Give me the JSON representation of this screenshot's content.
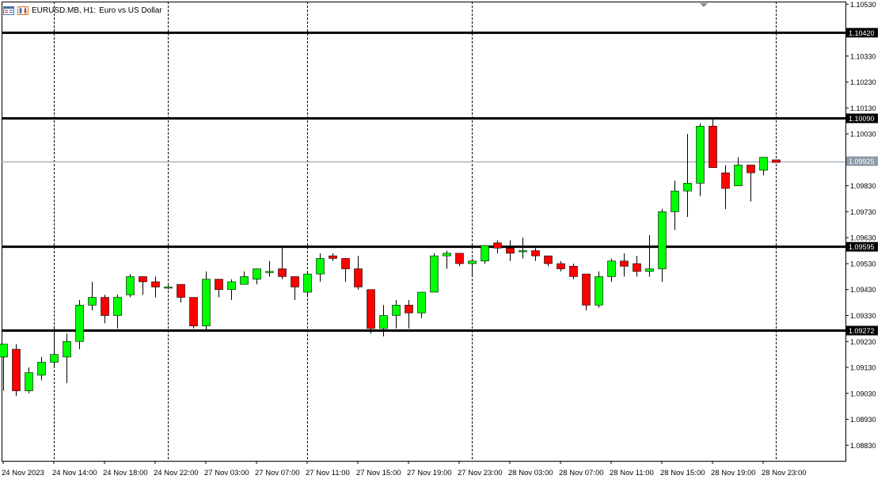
{
  "header": {
    "symbol": "EURUSD.MB, H1:",
    "description": "Euro vs US Dollar",
    "icons": [
      "chart-window-icon",
      "candle-chart-icon"
    ]
  },
  "colors": {
    "bull": "#00ff00",
    "bear": "#ff0000",
    "wick": "#000000",
    "level_line": "#000000",
    "bid_line": "#8c9aa8",
    "grid": "#000000",
    "axis_text": "#000000"
  },
  "chart_data": {
    "type": "candlestick",
    "timeframe": "H1",
    "y_axis": {
      "ylim": [
        1.0877,
        1.1054
      ],
      "ticks": [
        "1.10530",
        "1.10330",
        "1.10230",
        "1.10130",
        "1.10030",
        "1.09830",
        "1.09730",
        "1.09630",
        "1.09530",
        "1.09430",
        "1.09330",
        "1.09230",
        "1.09130",
        "1.09030",
        "1.08930",
        "1.08830"
      ]
    },
    "x_axis": {
      "ticks": [
        "24 Nov 2023",
        "24 Nov 14:00",
        "24 Nov 18:00",
        "24 Nov 22:00",
        "27 Nov 03:00",
        "27 Nov 07:00",
        "27 Nov 11:00",
        "27 Nov 15:00",
        "27 Nov 19:00",
        "27 Nov 23:00",
        "28 Nov 03:00",
        "28 Nov 07:00",
        "28 Nov 11:00",
        "28 Nov 15:00",
        "28 Nov 19:00",
        "28 Nov 23:00"
      ]
    },
    "horizontal_levels": [
      {
        "price": 1.1042,
        "label": "1.10420"
      },
      {
        "price": 1.1009,
        "label": "1.10090"
      },
      {
        "price": 1.09595,
        "label": "1.09595"
      },
      {
        "price": 1.09272,
        "label": "1.09272"
      }
    ],
    "bid": {
      "price": 1.09925,
      "label": "1.09925"
    },
    "period_separators": [
      4,
      13,
      24,
      37,
      61
    ],
    "candles": [
      {
        "o": 1.0917,
        "h": 1.0922,
        "l": 1.0904,
        "c": 1.0922
      },
      {
        "o": 1.092,
        "h": 1.0922,
        "l": 1.0902,
        "c": 1.0904
      },
      {
        "o": 1.0904,
        "h": 1.0913,
        "l": 1.0903,
        "c": 1.0911
      },
      {
        "o": 1.091,
        "h": 1.0917,
        "l": 1.0908,
        "c": 1.0915
      },
      {
        "o": 1.0915,
        "h": 1.0929,
        "l": 1.0913,
        "c": 1.0918
      },
      {
        "o": 1.0917,
        "h": 1.0926,
        "l": 1.0907,
        "c": 1.0923
      },
      {
        "o": 1.0923,
        "h": 1.0939,
        "l": 1.092,
        "c": 1.0937
      },
      {
        "o": 1.0937,
        "h": 1.0946,
        "l": 1.0935,
        "c": 1.094
      },
      {
        "o": 1.094,
        "h": 1.0941,
        "l": 1.093,
        "c": 1.0933
      },
      {
        "o": 1.0933,
        "h": 1.0941,
        "l": 1.0928,
        "c": 1.094
      },
      {
        "o": 1.0941,
        "h": 1.0949,
        "l": 1.094,
        "c": 1.0948
      },
      {
        "o": 1.0948,
        "h": 1.0948,
        "l": 1.0941,
        "c": 1.0946
      },
      {
        "o": 1.0946,
        "h": 1.0948,
        "l": 1.094,
        "c": 1.0944
      },
      {
        "o": 1.0944,
        "h": 1.0945,
        "l": 1.0943,
        "c": 1.0944
      },
      {
        "o": 1.0945,
        "h": 1.0945,
        "l": 1.0938,
        "c": 1.094
      },
      {
        "o": 1.094,
        "h": 1.094,
        "l": 1.0928,
        "c": 1.0929
      },
      {
        "o": 1.0929,
        "h": 1.095,
        "l": 1.0927,
        "c": 1.0947
      },
      {
        "o": 1.0947,
        "h": 1.0947,
        "l": 1.094,
        "c": 1.0943
      },
      {
        "o": 1.0943,
        "h": 1.0947,
        "l": 1.0939,
        "c": 1.0946
      },
      {
        "o": 1.0945,
        "h": 1.095,
        "l": 1.0945,
        "c": 1.0948
      },
      {
        "o": 1.0947,
        "h": 1.0951,
        "l": 1.0945,
        "c": 1.0951
      },
      {
        "o": 1.095,
        "h": 1.0954,
        "l": 1.0948,
        "c": 1.095
      },
      {
        "o": 1.0951,
        "h": 1.096,
        "l": 1.0947,
        "c": 1.0948
      },
      {
        "o": 1.0948,
        "h": 1.0948,
        "l": 1.0939,
        "c": 1.0944
      },
      {
        "o": 1.0942,
        "h": 1.095,
        "l": 1.094,
        "c": 1.0949
      },
      {
        "o": 1.0949,
        "h": 1.0957,
        "l": 1.0946,
        "c": 1.0955
      },
      {
        "o": 1.0956,
        "h": 1.0957,
        "l": 1.0954,
        "c": 1.0955
      },
      {
        "o": 1.0955,
        "h": 1.0955,
        "l": 1.0946,
        "c": 1.0951
      },
      {
        "o": 1.0951,
        "h": 1.0956,
        "l": 1.0943,
        "c": 1.0944
      },
      {
        "o": 1.0943,
        "h": 1.0943,
        "l": 1.0926,
        "c": 1.0928
      },
      {
        "o": 1.0928,
        "h": 1.0937,
        "l": 1.0925,
        "c": 1.0933
      },
      {
        "o": 1.0933,
        "h": 1.0939,
        "l": 1.0928,
        "c": 1.0937
      },
      {
        "o": 1.0937,
        "h": 1.0939,
        "l": 1.0928,
        "c": 1.0934
      },
      {
        "o": 1.0934,
        "h": 1.0942,
        "l": 1.0932,
        "c": 1.0942
      },
      {
        "o": 1.0942,
        "h": 1.0957,
        "l": 1.0942,
        "c": 1.0956
      },
      {
        "o": 1.0956,
        "h": 1.0958,
        "l": 1.0951,
        "c": 1.0957
      },
      {
        "o": 1.0957,
        "h": 1.0957,
        "l": 1.0952,
        "c": 1.0953
      },
      {
        "o": 1.0953,
        "h": 1.0955,
        "l": 1.0948,
        "c": 1.0954
      },
      {
        "o": 1.0954,
        "h": 1.096,
        "l": 1.0953,
        "c": 1.096
      },
      {
        "o": 1.0961,
        "h": 1.0962,
        "l": 1.0957,
        "c": 1.0959
      },
      {
        "o": 1.0959,
        "h": 1.0962,
        "l": 1.0954,
        "c": 1.0957
      },
      {
        "o": 1.0958,
        "h": 1.0963,
        "l": 1.0955,
        "c": 1.0958
      },
      {
        "o": 1.0958,
        "h": 1.0959,
        "l": 1.0954,
        "c": 1.0956
      },
      {
        "o": 1.0956,
        "h": 1.0956,
        "l": 1.0952,
        "c": 1.0953
      },
      {
        "o": 1.0953,
        "h": 1.0954,
        "l": 1.095,
        "c": 1.0951
      },
      {
        "o": 1.0952,
        "h": 1.0953,
        "l": 1.0947,
        "c": 1.0948
      },
      {
        "o": 1.0949,
        "h": 1.0949,
        "l": 1.0935,
        "c": 1.0937
      },
      {
        "o": 1.0937,
        "h": 1.095,
        "l": 1.0936,
        "c": 1.0948
      },
      {
        "o": 1.0948,
        "h": 1.0955,
        "l": 1.0946,
        "c": 1.0954
      },
      {
        "o": 1.0954,
        "h": 1.0957,
        "l": 1.0948,
        "c": 1.0952
      },
      {
        "o": 1.0953,
        "h": 1.0956,
        "l": 1.0948,
        "c": 1.095
      },
      {
        "o": 1.095,
        "h": 1.0964,
        "l": 1.0948,
        "c": 1.0951
      },
      {
        "o": 1.0951,
        "h": 1.0974,
        "l": 1.0946,
        "c": 1.0973
      },
      {
        "o": 1.0973,
        "h": 1.0985,
        "l": 1.0966,
        "c": 1.0981
      },
      {
        "o": 1.0981,
        "h": 1.1003,
        "l": 1.0971,
        "c": 1.0984
      },
      {
        "o": 1.0984,
        "h": 1.1007,
        "l": 1.0979,
        "c": 1.1006
      },
      {
        "o": 1.1006,
        "h": 1.1009,
        "l": 1.0991,
        "c": 1.099
      },
      {
        "o": 1.0988,
        "h": 1.0991,
        "l": 1.0974,
        "c": 1.0982
      },
      {
        "o": 1.0983,
        "h": 1.0994,
        "l": 1.0983,
        "c": 1.0991
      },
      {
        "o": 1.0991,
        "h": 1.0991,
        "l": 1.0977,
        "c": 1.0988
      },
      {
        "o": 1.0989,
        "h": 1.0994,
        "l": 1.0987,
        "c": 1.0994
      },
      {
        "o": 1.0993,
        "h": 1.0993,
        "l": 1.0992,
        "c": 1.0992
      }
    ]
  }
}
